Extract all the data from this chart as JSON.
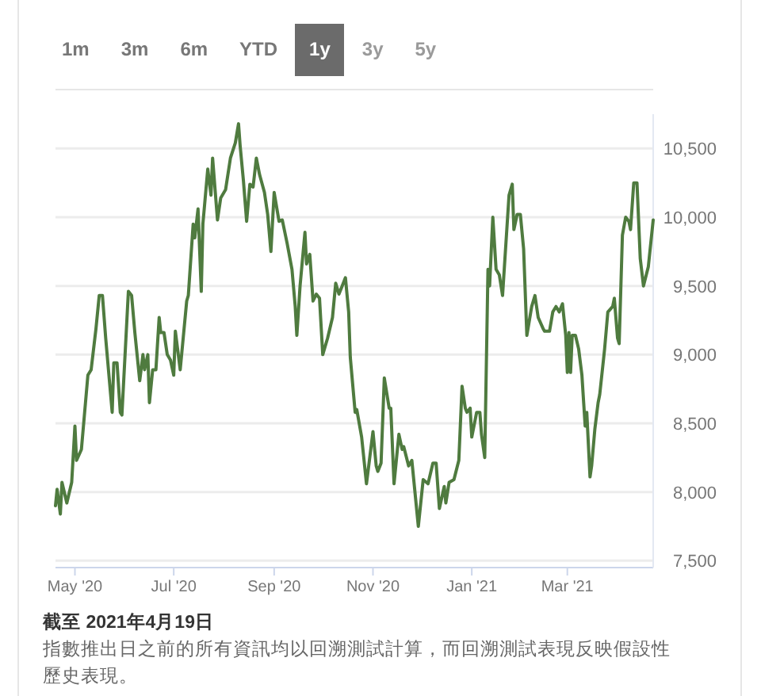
{
  "chart_data": {
    "type": "line",
    "color": "#4f7b3f",
    "x": [
      "2020-04-19",
      "2020-04-20",
      "2020-04-22",
      "2020-04-23",
      "2020-04-26",
      "2020-04-29",
      "2020-05-01",
      "2020-05-02",
      "2020-05-05",
      "2020-05-09",
      "2020-05-11",
      "2020-05-14",
      "2020-05-16",
      "2020-05-18",
      "2020-05-20",
      "2020-05-24",
      "2020-05-25",
      "2020-05-27",
      "2020-05-29",
      "2020-05-30",
      "2020-06-03",
      "2020-06-05",
      "2020-06-07",
      "2020-06-10",
      "2020-06-12",
      "2020-06-13",
      "2020-06-15",
      "2020-06-16",
      "2020-06-18",
      "2020-06-20",
      "2020-06-22",
      "2020-06-23",
      "2020-06-25",
      "2020-06-27",
      "2020-06-29",
      "2020-07-01",
      "2020-07-02",
      "2020-07-05",
      "2020-07-09",
      "2020-07-10",
      "2020-07-13",
      "2020-07-14",
      "2020-07-16",
      "2020-07-18",
      "2020-07-19",
      "2020-07-22",
      "2020-07-24",
      "2020-07-25",
      "2020-07-28",
      "2020-07-30",
      "2020-08-02",
      "2020-08-05",
      "2020-08-08",
      "2020-08-10",
      "2020-08-11",
      "2020-08-13",
      "2020-08-15",
      "2020-08-17",
      "2020-08-19",
      "2020-08-21",
      "2020-08-23",
      "2020-08-26",
      "2020-08-28",
      "2020-08-30",
      "2020-09-01",
      "2020-09-04",
      "2020-09-06",
      "2020-09-09",
      "2020-09-12",
      "2020-09-14",
      "2020-09-15",
      "2020-09-17",
      "2020-09-20",
      "2020-09-21",
      "2020-09-23",
      "2020-09-25",
      "2020-09-27",
      "2020-09-29",
      "2020-10-01",
      "2020-10-04",
      "2020-10-07",
      "2020-10-09",
      "2020-10-11",
      "2020-10-13",
      "2020-10-15",
      "2020-10-17",
      "2020-10-18",
      "2020-10-21",
      "2020-10-22",
      "2020-10-25",
      "2020-10-28",
      "2020-11-01",
      "2020-11-03",
      "2020-11-04",
      "2020-11-06",
      "2020-11-08",
      "2020-11-11",
      "2020-11-12",
      "2020-11-14",
      "2020-11-17",
      "2020-11-19",
      "2020-11-20",
      "2020-11-23",
      "2020-11-25",
      "2020-11-29",
      "2020-12-02",
      "2020-12-05",
      "2020-12-08",
      "2020-12-10",
      "2020-12-12",
      "2020-12-15",
      "2020-12-16",
      "2020-12-18",
      "2020-12-21",
      "2020-12-24",
      "2020-12-26",
      "2020-12-28",
      "2020-12-29",
      "2020-12-31",
      "2021-01-01",
      "2021-01-04",
      "2021-01-06",
      "2021-01-07",
      "2021-01-09",
      "2021-01-11",
      "2021-01-12",
      "2021-01-14",
      "2021-01-16",
      "2021-01-18",
      "2021-01-20",
      "2021-01-24",
      "2021-01-26",
      "2021-01-27",
      "2021-01-29",
      "2021-01-31",
      "2021-02-02",
      "2021-02-04",
      "2021-02-07",
      "2021-02-09",
      "2021-02-11",
      "2021-02-14",
      "2021-02-15",
      "2021-02-18",
      "2021-02-20",
      "2021-02-22",
      "2021-02-24",
      "2021-02-26",
      "2021-02-28",
      "2021-03-01",
      "2021-03-02",
      "2021-03-03",
      "2021-03-04",
      "2021-03-06",
      "2021-03-08",
      "2021-03-10",
      "2021-03-12",
      "2021-03-13",
      "2021-03-15",
      "2021-03-16",
      "2021-03-18",
      "2021-03-20",
      "2021-03-21",
      "2021-03-24",
      "2021-03-26",
      "2021-03-29",
      "2021-03-30",
      "2021-04-01",
      "2021-04-02",
      "2021-04-04",
      "2021-04-06",
      "2021-04-08",
      "2021-04-09",
      "2021-04-11",
      "2021-04-13",
      "2021-04-15",
      "2021-04-17",
      "2021-04-20",
      "2021-04-23"
    ],
    "values": [
      7900,
      8020,
      7840,
      8070,
      7920,
      8070,
      8480,
      8230,
      8310,
      8850,
      8890,
      9190,
      9430,
      9430,
      9120,
      8580,
      8940,
      8940,
      8580,
      8560,
      9460,
      9430,
      9160,
      8810,
      9000,
      8890,
      9000,
      8650,
      8890,
      8890,
      9270,
      9160,
      9160,
      9000,
      8960,
      8850,
      9170,
      8890,
      9390,
      9430,
      9950,
      9850,
      10060,
      9460,
      9950,
      10350,
      10160,
      10430,
      9980,
      10140,
      10200,
      10430,
      10540,
      10680,
      10520,
      10270,
      9970,
      10240,
      10220,
      10430,
      10310,
      10180,
      10020,
      9750,
      10180,
      9970,
      9980,
      9810,
      9620,
      9350,
      9140,
      9500,
      9890,
      9660,
      9730,
      9390,
      9440,
      9410,
      9000,
      9120,
      9270,
      9520,
      9440,
      9500,
      9560,
      9310,
      8980,
      8580,
      8600,
      8400,
      8060,
      8440,
      8190,
      8150,
      8210,
      8830,
      8610,
      8610,
      8060,
      8420,
      8310,
      8330,
      8190,
      8230,
      7750,
      8090,
      8060,
      8210,
      8210,
      7880,
      8040,
      7920,
      8070,
      8090,
      8230,
      8770,
      8610,
      8580,
      8610,
      8400,
      8580,
      8580,
      8420,
      8250,
      9620,
      9500,
      10000,
      9620,
      9580,
      9430,
      10160,
      10240,
      9910,
      10020,
      10020,
      9770,
      9140,
      9350,
      9430,
      9270,
      9190,
      9170,
      9170,
      9310,
      9350,
      9310,
      9370,
      9140,
      8870,
      9160,
      8870,
      9140,
      9140,
      9040,
      8850,
      8480,
      8580,
      8110,
      8190,
      8460,
      8650,
      8710,
      9040,
      9310,
      9350,
      9410,
      9120,
      9080,
      9870,
      10000,
      9970,
      9910,
      10250,
      10250,
      9700,
      9500,
      9640,
      9980
    ],
    "xlim": [
      "2020-04-19",
      "2021-04-23"
    ],
    "xticks": [
      {
        "value": "2020-05-01",
        "label": "May '20"
      },
      {
        "value": "2020-07-01",
        "label": "Jul '20"
      },
      {
        "value": "2020-09-01",
        "label": "Sep '20"
      },
      {
        "value": "2020-11-01",
        "label": "Nov '20"
      },
      {
        "value": "2021-01-01",
        "label": "Jan '21"
      },
      {
        "value": "2021-03-01",
        "label": "Mar '21"
      }
    ],
    "ylim": [
      7450,
      10750
    ],
    "yticks": [
      {
        "value": 7500,
        "label": "7,500"
      },
      {
        "value": 8000,
        "label": "8,000"
      },
      {
        "value": 8500,
        "label": "8,500"
      },
      {
        "value": 9000,
        "label": "9,000"
      },
      {
        "value": 9500,
        "label": "9,500"
      },
      {
        "value": 10000,
        "label": "10,000"
      },
      {
        "value": 10500,
        "label": "10,500"
      }
    ],
    "grid": "y",
    "marker": "none",
    "line_style": "solid",
    "annotations": [
      "1m",
      "3m",
      "6m",
      "YTD",
      "1y",
      "3y",
      "5y",
      "截至 2021年4月19日",
      "指數推出日之前的所有資訊均以回溯測試計算，而回溯測試表現反映假設性歷史表現。"
    ]
  }
}
